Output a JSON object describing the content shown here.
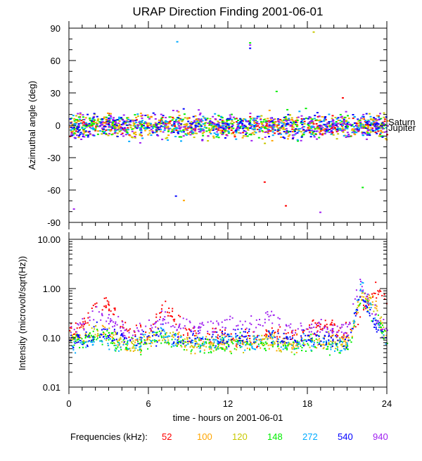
{
  "chart_data": [
    {
      "type": "scatter",
      "title": "URAP Direction Finding  2001-06-01",
      "ylabel": "Azimuthal angle (deg)",
      "xlabel": "",
      "xlim": [
        0,
        24
      ],
      "ylim": [
        -90,
        90
      ],
      "yticks": [
        "90",
        "60",
        "30",
        "0",
        "-30",
        "-60",
        "-90"
      ],
      "ytick_values": [
        90,
        60,
        30,
        0,
        -30,
        -60,
        -90
      ],
      "annotations": [
        {
          "text": "Saturn",
          "y": 2
        },
        {
          "text": "Jupiter",
          "y": -1
        }
      ],
      "series_center_deg": 0,
      "series_spread_deg": {
        "52": 5,
        "100": 6,
        "120": 6,
        "148": 6,
        "272": 6,
        "540": 6,
        "940": 7
      },
      "outliers": [
        {
          "series": "272",
          "x": 8.1,
          "y": 78
        },
        {
          "series": "148",
          "x": 13.6,
          "y": 77
        },
        {
          "series": "940",
          "x": 13.6,
          "y": 75
        },
        {
          "series": "540",
          "x": 13.6,
          "y": 72
        },
        {
          "series": "120",
          "x": 18.4,
          "y": 87
        },
        {
          "series": "148",
          "x": 15.6,
          "y": 32
        },
        {
          "series": "52",
          "x": 20.6,
          "y": 26
        },
        {
          "series": "940",
          "x": 0.3,
          "y": -77
        },
        {
          "series": "540",
          "x": 8.0,
          "y": -65
        },
        {
          "series": "100",
          "x": 8.6,
          "y": -69
        },
        {
          "series": "52",
          "x": 16.3,
          "y": -74
        },
        {
          "series": "940",
          "x": 18.9,
          "y": -80
        },
        {
          "series": "148",
          "x": 22.1,
          "y": -57
        },
        {
          "series": "52",
          "x": 14.7,
          "y": -52
        }
      ]
    },
    {
      "type": "scatter",
      "title": "",
      "ylabel": "Intensity (microvolt/sqrt(Hz))",
      "xlabel": "time - hours on 2001-06-01",
      "xlim": [
        0,
        24
      ],
      "ylim": [
        0.01,
        10
      ],
      "yscale": "log",
      "xticks": [
        "0",
        "6",
        "12",
        "18",
        "24"
      ],
      "xtick_values": [
        0,
        6,
        12,
        18,
        24
      ],
      "yticks": [
        "10.00",
        "1.00",
        "0.10",
        "0.01"
      ],
      "ytick_values": [
        10,
        1,
        0.1,
        0.01
      ],
      "hours": [
        0,
        1,
        2,
        3,
        4,
        5,
        6,
        7,
        8,
        9,
        10,
        11,
        12,
        13,
        14,
        15,
        16,
        17,
        18,
        19,
        20,
        21,
        22,
        23,
        24
      ],
      "series": [
        {
          "name": "52",
          "color": "#ff0000",
          "values": [
            0.12,
            0.2,
            0.5,
            0.5,
            0.2,
            0.12,
            0.12,
            0.45,
            0.25,
            0.12,
            0.11,
            0.11,
            0.11,
            0.11,
            0.11,
            0.12,
            0.12,
            0.12,
            0.14,
            0.2,
            0.15,
            0.13,
            0.3,
            0.9,
            0.5
          ]
        },
        {
          "name": "100",
          "color": "#ffa500",
          "values": [
            0.09,
            0.1,
            0.15,
            0.12,
            0.07,
            0.07,
            0.09,
            0.12,
            0.09,
            0.08,
            0.07,
            0.08,
            0.07,
            0.09,
            0.08,
            0.09,
            0.08,
            0.08,
            0.09,
            0.09,
            0.09,
            0.08,
            0.7,
            0.6,
            0.1
          ]
        },
        {
          "name": "120",
          "color": "#c8c800",
          "values": [
            0.09,
            0.1,
            0.14,
            0.11,
            0.08,
            0.08,
            0.09,
            0.12,
            0.09,
            0.08,
            0.08,
            0.08,
            0.08,
            0.09,
            0.08,
            0.09,
            0.08,
            0.08,
            0.09,
            0.09,
            0.09,
            0.08,
            0.7,
            0.5,
            0.1
          ]
        },
        {
          "name": "148",
          "color": "#00ee00",
          "values": [
            0.08,
            0.09,
            0.12,
            0.1,
            0.07,
            0.07,
            0.08,
            0.11,
            0.08,
            0.07,
            0.07,
            0.07,
            0.07,
            0.08,
            0.06,
            0.08,
            0.07,
            0.07,
            0.08,
            0.08,
            0.06,
            0.06,
            0.6,
            0.3,
            0.1
          ]
        },
        {
          "name": "272",
          "color": "#00aaff",
          "values": [
            0.08,
            0.08,
            0.1,
            0.09,
            0.07,
            0.08,
            0.09,
            0.12,
            0.09,
            0.08,
            0.08,
            0.08,
            0.09,
            0.09,
            0.08,
            0.12,
            0.08,
            0.08,
            0.08,
            0.08,
            0.07,
            0.07,
            1.2,
            0.3,
            0.09
          ]
        },
        {
          "name": "540",
          "color": "#0000ff",
          "values": [
            0.1,
            0.1,
            0.12,
            0.11,
            0.1,
            0.1,
            0.11,
            0.13,
            0.1,
            0.1,
            0.1,
            0.1,
            0.11,
            0.11,
            0.1,
            0.13,
            0.1,
            0.1,
            0.1,
            0.1,
            0.09,
            0.09,
            0.8,
            0.2,
            0.1
          ]
        },
        {
          "name": "940",
          "color": "#a020f0",
          "values": [
            0.15,
            0.2,
            0.4,
            0.25,
            0.16,
            0.15,
            0.18,
            0.3,
            0.18,
            0.18,
            0.17,
            0.17,
            0.22,
            0.2,
            0.17,
            0.3,
            0.18,
            0.17,
            0.17,
            0.16,
            0.15,
            0.15,
            1.5,
            0.3,
            0.15
          ]
        }
      ]
    }
  ],
  "legend": {
    "label": "Frequencies (kHz):",
    "placement": "bottom",
    "items": [
      {
        "text": "52",
        "color": "#ff0000"
      },
      {
        "text": "100",
        "color": "#ffa500"
      },
      {
        "text": "120",
        "color": "#c8c800"
      },
      {
        "text": "148",
        "color": "#00ee00"
      },
      {
        "text": "272",
        "color": "#00aaff"
      },
      {
        "text": "540",
        "color": "#0000ff"
      },
      {
        "text": "940",
        "color": "#a020f0"
      }
    ]
  }
}
